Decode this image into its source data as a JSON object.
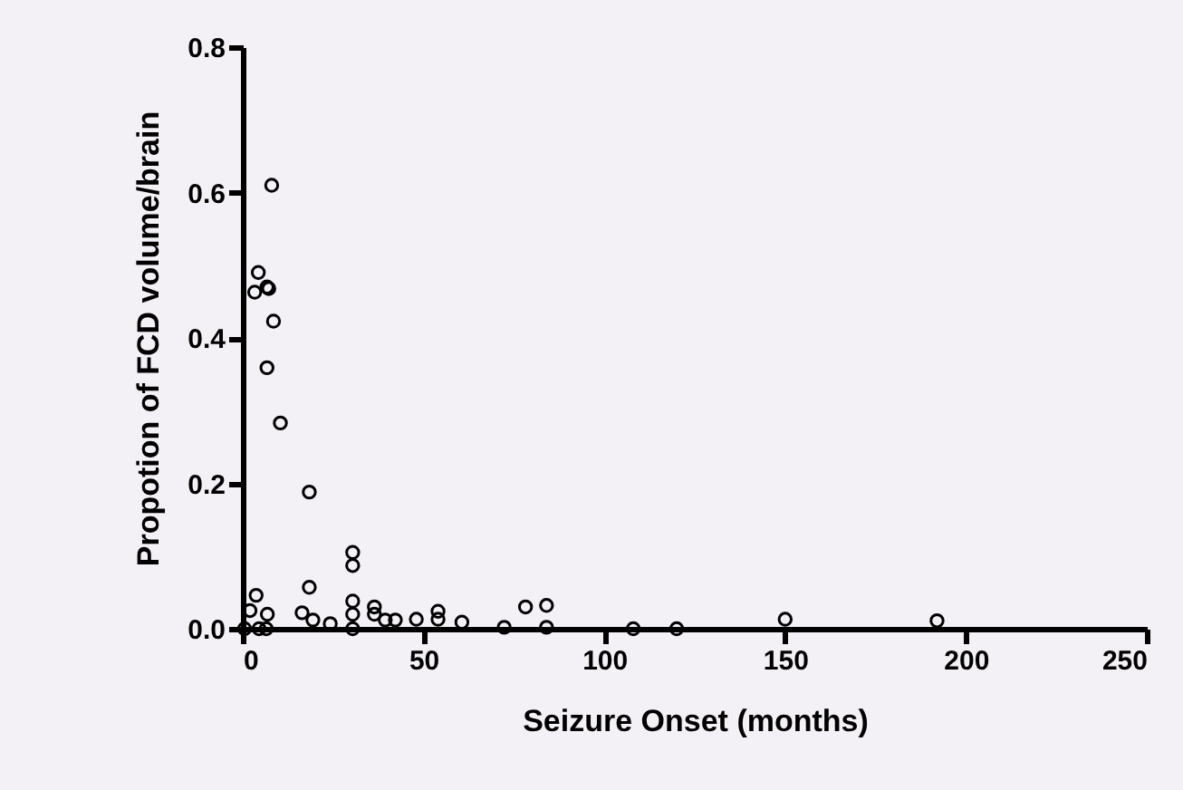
{
  "chart_data": {
    "type": "scatter",
    "xlabel": "Seizure Onset  (months)",
    "ylabel": "Propotion of FCD volume/brain",
    "x": [
      8,
      4.3,
      3.3,
      6.7,
      7.2,
      8.5,
      6.7,
      10.4,
      18.4,
      30.4,
      30.4,
      18.4,
      3.7,
      30.4,
      36.4,
      36.4,
      16.4,
      6.8,
      30.4,
      19.4,
      24.2,
      39.4,
      42.2,
      48,
      30.4,
      0.5,
      4.5,
      6.5,
      2,
      54,
      54,
      60.6,
      72.3,
      78.2,
      84,
      84,
      108,
      120,
      150,
      192
    ],
    "values": [
      0.61,
      0.49,
      0.463,
      0.47,
      0.468,
      0.423,
      0.359,
      0.283,
      0.188,
      0.105,
      0.087,
      0.057,
      0.046,
      0.038,
      0.03,
      0.02,
      0.022,
      0.02,
      0.02,
      0.012,
      0.007,
      0.012,
      0.012,
      0.013,
      0,
      0,
      0,
      0,
      0.025,
      0.024,
      0.013,
      0.009,
      0.002,
      0.03,
      0.032,
      0.002,
      0,
      0,
      0.013,
      0.011
    ],
    "color": "#000000",
    "marker": "circle",
    "xlim": [
      0,
      250
    ],
    "xticks": [
      0,
      50,
      100,
      150,
      200,
      250
    ],
    "ylim": [
      0,
      0.8
    ],
    "yticks": [
      {
        "value": 0,
        "label": "0.0"
      },
      0.2,
      0.4,
      0.6,
      0.8
    ],
    "grid": false
  }
}
